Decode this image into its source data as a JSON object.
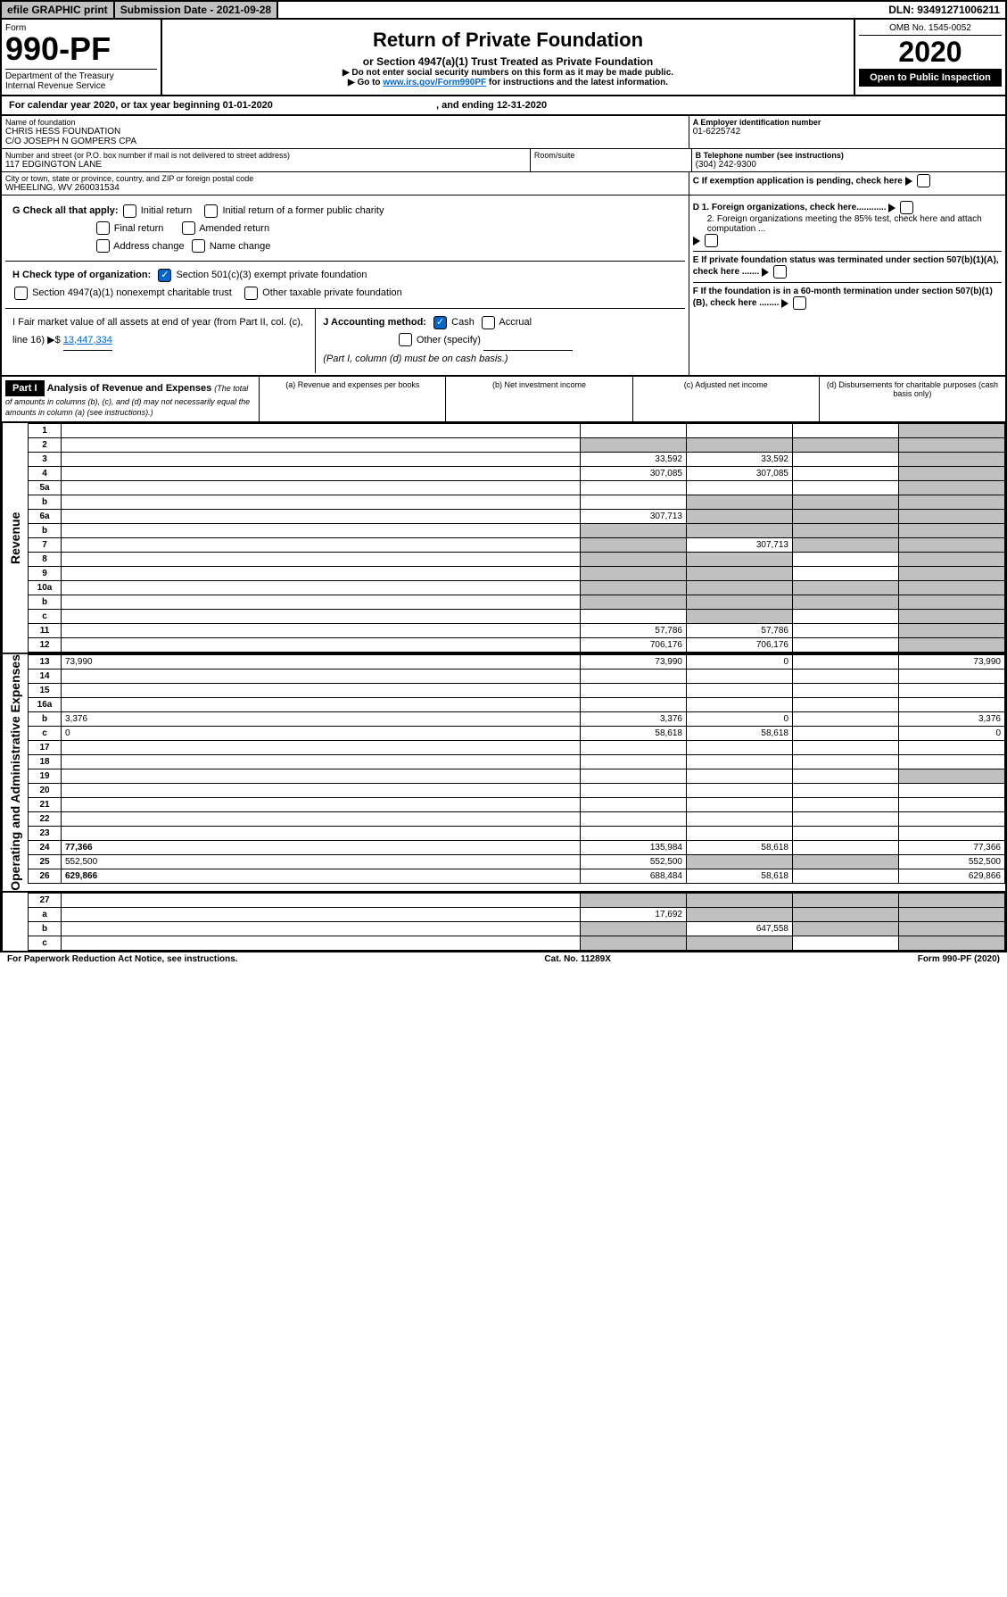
{
  "topbar": {
    "efile": "efile GRAPHIC print",
    "subdate": "Submission Date - 2021-09-28",
    "dln": "DLN: 93491271006211"
  },
  "header": {
    "form_label": "Form",
    "form_number": "990-PF",
    "dept": "Department of the Treasury\nInternal Revenue Service",
    "title": "Return of Private Foundation",
    "subtitle": "or Section 4947(a)(1) Trust Treated as Private Foundation",
    "note1": "▶ Do not enter social security numbers on this form as it may be made public.",
    "note2_prefix": "▶ Go to ",
    "note2_link": "www.irs.gov/Form990PF",
    "note2_suffix": " for instructions and the latest information.",
    "omb": "OMB No. 1545-0052",
    "year": "2020",
    "open": "Open to Public Inspection"
  },
  "calendar": {
    "text_prefix": "For calendar year 2020, or tax year beginning 01-01-2020",
    "text_mid": ", and ending 12-31-2020"
  },
  "foundation": {
    "name_label": "Name of foundation",
    "name": "CHRIS HESS FOUNDATION\nC/O JOSEPH N GOMPERS CPA",
    "ein_label": "A Employer identification number",
    "ein": "01-6225742",
    "street_label": "Number and street (or P.O. box number if mail is not delivered to street address)",
    "street": "117 EDGINGTON LANE",
    "room_label": "Room/suite",
    "phone_label": "B Telephone number (see instructions)",
    "phone": "(304) 242-9300",
    "city_label": "City or town, state or province, country, and ZIP or foreign postal code",
    "city": "WHEELING, WV  260031534",
    "c_label": "C If exemption application is pending, check here"
  },
  "checks": {
    "g_label": "G Check all that apply:",
    "initial": "Initial return",
    "initial_former": "Initial return of a former public charity",
    "final": "Final return",
    "amended": "Amended return",
    "address": "Address change",
    "name_change": "Name change",
    "h_label": "H Check type of organization:",
    "h_501c3": "Section 501(c)(3) exempt private foundation",
    "h_4947": "Section 4947(a)(1) nonexempt charitable trust",
    "h_other": "Other taxable private foundation",
    "i_label": "I Fair market value of all assets at end of year (from Part II, col. (c), line 16) ▶$ ",
    "i_value": "13,447,334",
    "j_label": "J Accounting method:",
    "j_cash": "Cash",
    "j_accrual": "Accrual",
    "j_other": "Other (specify)",
    "j_note": "(Part I, column (d) must be on cash basis.)",
    "d1": "D 1. Foreign organizations, check here............",
    "d2": "2. Foreign organizations meeting the 85% test, check here and attach computation ...",
    "e_label": "E  If private foundation status was terminated under section 507(b)(1)(A), check here .......",
    "f_label": "F  If the foundation is in a 60-month termination under section 507(b)(1)(B), check here ........"
  },
  "part1": {
    "label": "Part I",
    "title": "Analysis of Revenue and Expenses",
    "subtitle": "(The total of amounts in columns (b), (c), and (d) may not necessarily equal the amounts in column (a) (see instructions).)",
    "col_a": "(a) Revenue and expenses per books",
    "col_b": "(b) Net investment income",
    "col_c": "(c) Adjusted net income",
    "col_d": "(d) Disbursements for charitable purposes (cash basis only)"
  },
  "sections": {
    "revenue": "Revenue",
    "expenses": "Operating and Administrative Expenses"
  },
  "rows": [
    {
      "n": "1",
      "d": "",
      "a": "",
      "b": "",
      "c": "",
      "dshade": true
    },
    {
      "n": "2",
      "d": "",
      "a": "",
      "b": "",
      "c": "",
      "allshade": true,
      "special": true
    },
    {
      "n": "3",
      "d": "",
      "a": "33,592",
      "b": "33,592",
      "c": "",
      "dshade": true
    },
    {
      "n": "4",
      "d": "",
      "a": "307,085",
      "b": "307,085",
      "c": "",
      "dshade": true
    },
    {
      "n": "5a",
      "d": "",
      "a": "",
      "b": "",
      "c": "",
      "dshade": true
    },
    {
      "n": "b",
      "d": "",
      "a": "",
      "b": "",
      "c": "",
      "bcshade": true,
      "dshade": true
    },
    {
      "n": "6a",
      "d": "",
      "a": "307,713",
      "b": "",
      "c": "",
      "bcshade": true,
      "dshade": true
    },
    {
      "n": "b",
      "d": "",
      "a": "",
      "b": "",
      "c": "",
      "allshade": true
    },
    {
      "n": "7",
      "d": "",
      "a": "",
      "b": "307,713",
      "c": "",
      "ashade": true,
      "cshade": true,
      "dshade": true
    },
    {
      "n": "8",
      "d": "",
      "a": "",
      "b": "",
      "c": "",
      "abshade": true,
      "dshade": true
    },
    {
      "n": "9",
      "d": "",
      "a": "",
      "b": "",
      "c": "",
      "abshade": true,
      "dshade": true
    },
    {
      "n": "10a",
      "d": "",
      "a": "",
      "b": "",
      "c": "",
      "allshade": true
    },
    {
      "n": "b",
      "d": "",
      "a": "",
      "b": "",
      "c": "",
      "allshade": true
    },
    {
      "n": "c",
      "d": "",
      "a": "",
      "b": "",
      "c": "",
      "bshade": true,
      "dshade": true
    },
    {
      "n": "11",
      "d": "",
      "a": "57,786",
      "b": "57,786",
      "c": "",
      "dshade": true
    },
    {
      "n": "12",
      "d": "",
      "a": "706,176",
      "b": "706,176",
      "c": "",
      "dshade": true,
      "bold": true
    }
  ],
  "exp_rows": [
    {
      "n": "13",
      "d": "73,990",
      "a": "73,990",
      "b": "0",
      "c": ""
    },
    {
      "n": "14",
      "d": "",
      "a": "",
      "b": "",
      "c": ""
    },
    {
      "n": "15",
      "d": "",
      "a": "",
      "b": "",
      "c": ""
    },
    {
      "n": "16a",
      "d": "",
      "a": "",
      "b": "",
      "c": ""
    },
    {
      "n": "b",
      "d": "3,376",
      "a": "3,376",
      "b": "0",
      "c": ""
    },
    {
      "n": "c",
      "d": "0",
      "a": "58,618",
      "b": "58,618",
      "c": ""
    },
    {
      "n": "17",
      "d": "",
      "a": "",
      "b": "",
      "c": ""
    },
    {
      "n": "18",
      "d": "",
      "a": "",
      "b": "",
      "c": ""
    },
    {
      "n": "19",
      "d": "",
      "a": "",
      "b": "",
      "c": "",
      "dshade": true
    },
    {
      "n": "20",
      "d": "",
      "a": "",
      "b": "",
      "c": ""
    },
    {
      "n": "21",
      "d": "",
      "a": "",
      "b": "",
      "c": ""
    },
    {
      "n": "22",
      "d": "",
      "a": "",
      "b": "",
      "c": ""
    },
    {
      "n": "23",
      "d": "",
      "a": "",
      "b": "",
      "c": ""
    },
    {
      "n": "24",
      "d": "77,366",
      "a": "135,984",
      "b": "58,618",
      "c": "",
      "bold": true
    },
    {
      "n": "25",
      "d": "552,500",
      "a": "552,500",
      "b": "",
      "c": "",
      "bcshade": true
    },
    {
      "n": "26",
      "d": "629,866",
      "a": "688,484",
      "b": "58,618",
      "c": "",
      "bold": true
    }
  ],
  "bottom_rows": [
    {
      "n": "27",
      "d": "",
      "a": "",
      "b": "",
      "c": "",
      "allshade": true
    },
    {
      "n": "a",
      "d": "",
      "a": "17,692",
      "b": "",
      "c": "",
      "bcshade": true,
      "dshade": true,
      "bold": true
    },
    {
      "n": "b",
      "d": "",
      "a": "",
      "b": "647,558",
      "c": "",
      "ashade": true,
      "cshade": true,
      "dshade": true,
      "bold": true
    },
    {
      "n": "c",
      "d": "",
      "a": "",
      "b": "",
      "c": "",
      "abshade": true,
      "dshade": true,
      "bold": true
    }
  ],
  "footer": {
    "left": "For Paperwork Reduction Act Notice, see instructions.",
    "mid": "Cat. No. 11289X",
    "right": "Form 990-PF (2020)"
  }
}
